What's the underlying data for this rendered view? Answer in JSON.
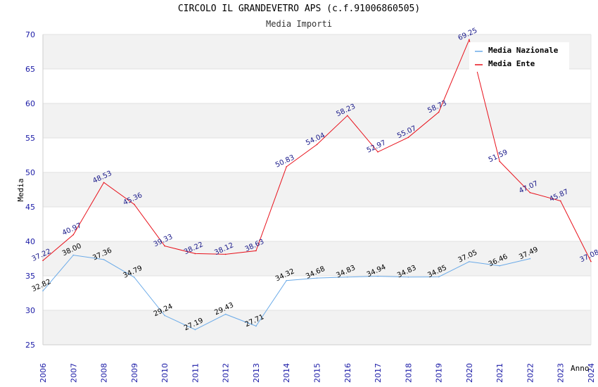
{
  "chart_data": {
    "type": "line",
    "title": "CIRCOLO IL GRANDEVETRO APS (c.f.91006860505)",
    "subtitle": "Media Importi",
    "xlabel": "Anno",
    "ylabel": "Media",
    "ylim": [
      25,
      70
    ],
    "yticks": [
      "25",
      "30",
      "35",
      "40",
      "45",
      "50",
      "55",
      "60",
      "65",
      "70"
    ],
    "x": [
      "2006",
      "2007",
      "2008",
      "2009",
      "2010",
      "2011",
      "2012",
      "2013",
      "2014",
      "2015",
      "2016",
      "2017",
      "2018",
      "2019",
      "2020",
      "2021",
      "2022",
      "2023",
      "2024"
    ],
    "grid": true,
    "legend_position": "top-right",
    "series": [
      {
        "name": "Media Nazionale",
        "color": "#6aaae8",
        "values": [
          32.82,
          38.0,
          37.36,
          34.79,
          29.24,
          27.19,
          29.43,
          27.71,
          34.32,
          34.68,
          34.83,
          34.94,
          34.83,
          34.85,
          37.05,
          36.46,
          37.49,
          null,
          null
        ],
        "labels": [
          "32.82",
          "38.00",
          "37.36",
          "34.79",
          "29.24",
          "27.19",
          "29.43",
          "27.71",
          "34.32",
          "34.68",
          "34.83",
          "34.94",
          "34.83",
          "34.85",
          "37.05",
          "36.46",
          "37.49",
          null,
          null
        ]
      },
      {
        "name": "Media Ente",
        "color": "#e8101a",
        "values": [
          37.22,
          40.97,
          48.53,
          45.36,
          39.33,
          38.22,
          38.12,
          38.63,
          50.83,
          54.04,
          58.23,
          52.97,
          55.07,
          58.73,
          69.25,
          51.59,
          47.07,
          45.87,
          37.08
        ],
        "labels": [
          "37.22",
          "40.97",
          "48.53",
          "45.36",
          "39.33",
          "38.22",
          "38.12",
          "38.63",
          "50.83",
          "54.04",
          "58.23",
          "52.97",
          "55.07",
          "58.73",
          "69.25",
          "51.59",
          "47.07",
          "45.87",
          "37.08"
        ]
      }
    ]
  }
}
